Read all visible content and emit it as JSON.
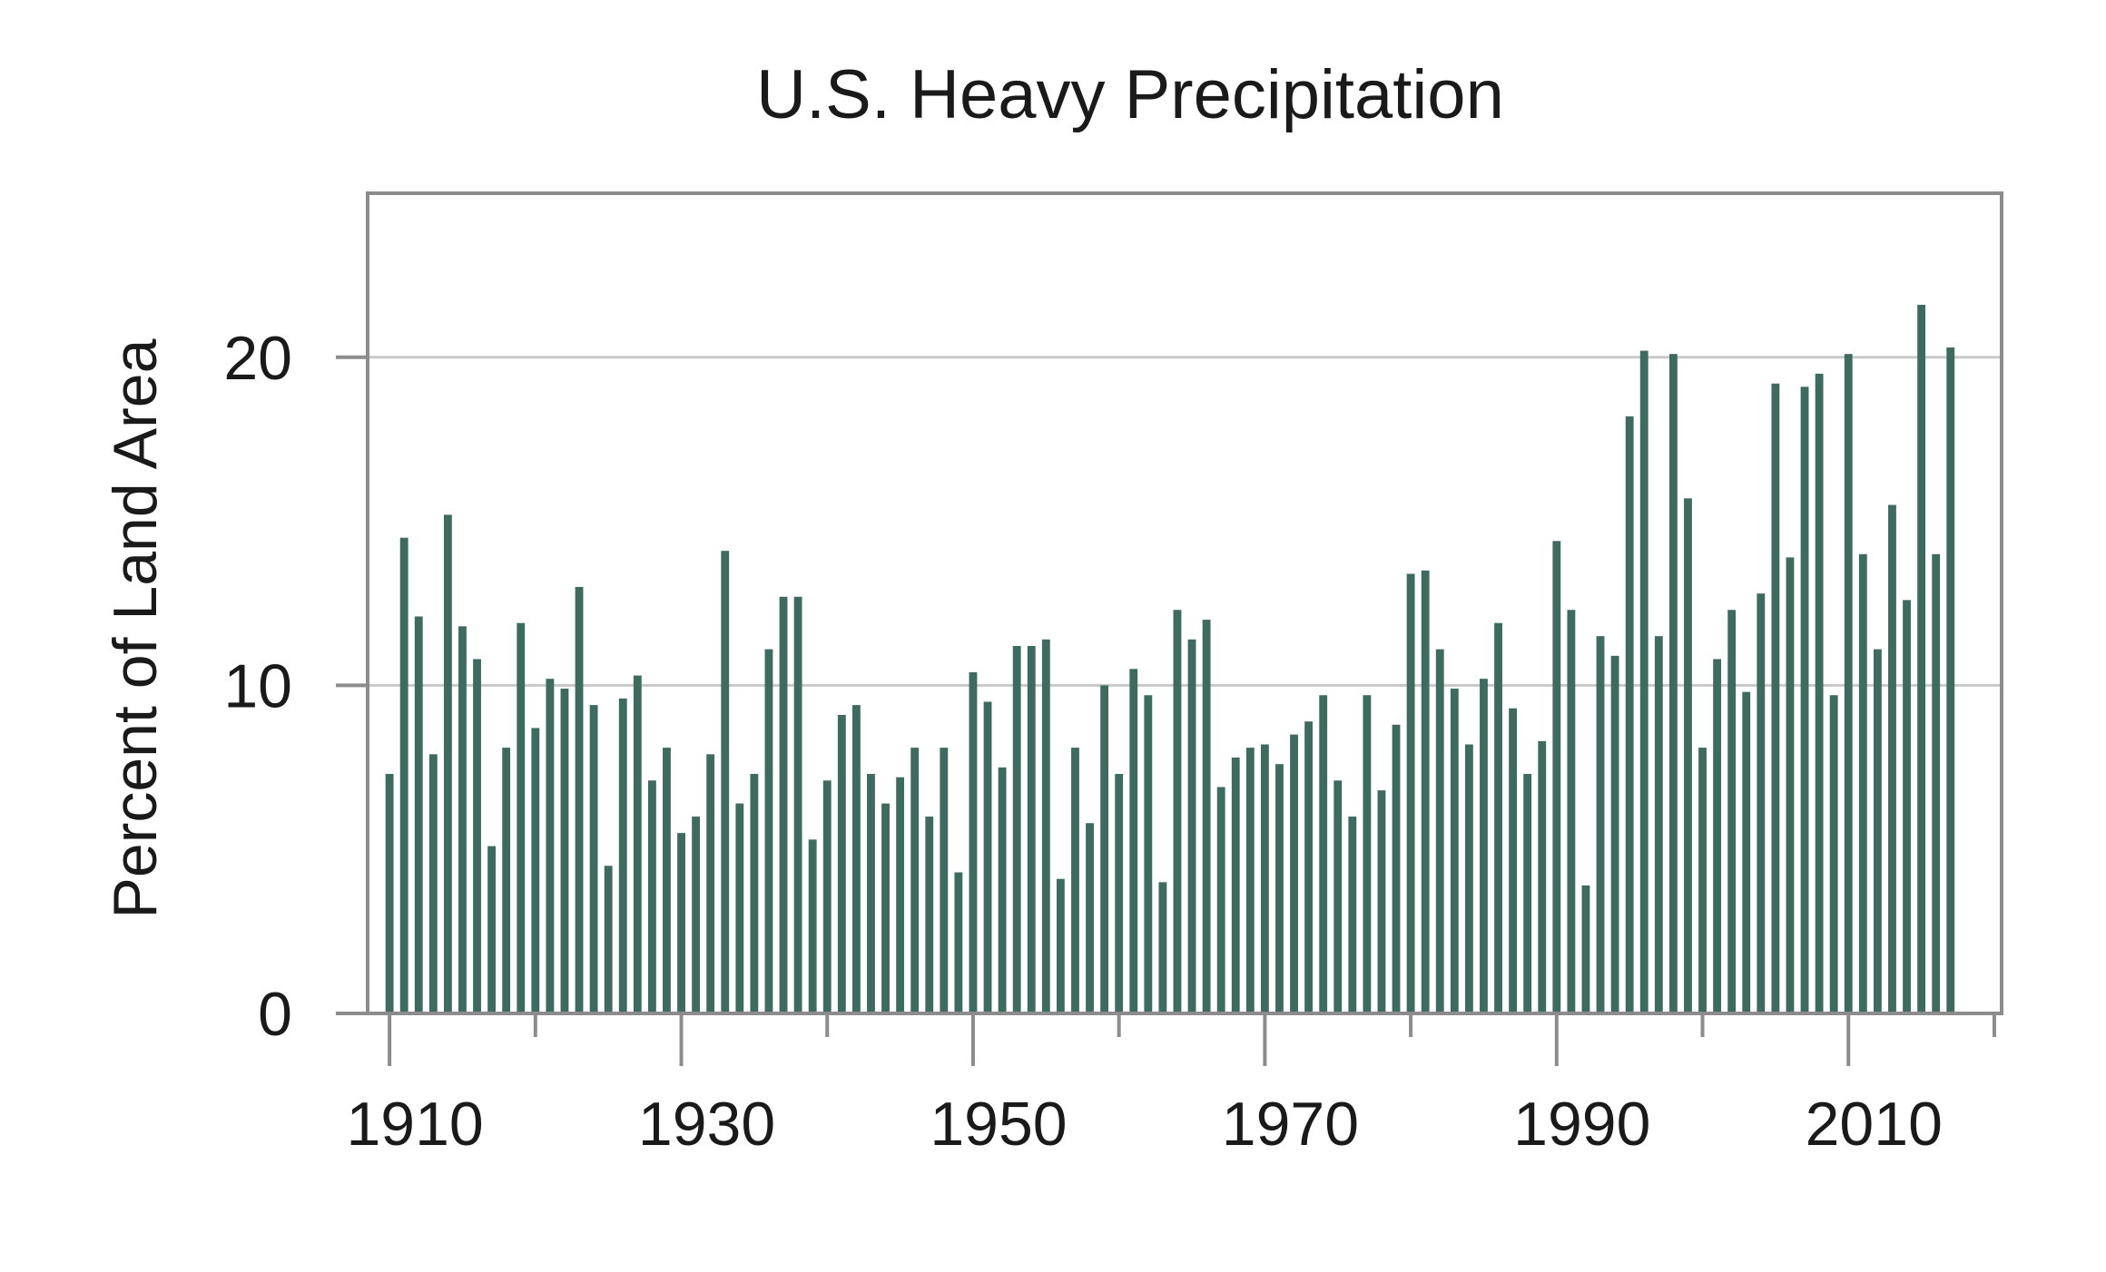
{
  "colors": {
    "bar": "#3e6b60",
    "axis": "#8c8c8c",
    "grid": "#c8c8c8",
    "frame": "#8c8c8c",
    "text": "#1a1a1a"
  },
  "chart_data": {
    "type": "bar",
    "title": "U.S. Heavy Precipitation",
    "xlabel": "",
    "ylabel": "Percent of Land Area",
    "xlim": [
      1908.5,
      2020.5
    ],
    "ylim": [
      0,
      25
    ],
    "grid": "horizontal",
    "legend": "none",
    "xticks_labeled": [
      "1910",
      "1930",
      "1950",
      "1970",
      "1990",
      "2010"
    ],
    "xticks_minor": [
      1920,
      1940,
      1960,
      1980,
      2000,
      2020
    ],
    "yticks": [
      "0",
      "10",
      "20"
    ],
    "x": [
      1910,
      1911,
      1912,
      1913,
      1914,
      1915,
      1916,
      1917,
      1918,
      1919,
      1920,
      1921,
      1922,
      1923,
      1924,
      1925,
      1926,
      1927,
      1928,
      1929,
      1930,
      1931,
      1932,
      1933,
      1934,
      1935,
      1936,
      1937,
      1938,
      1939,
      1940,
      1941,
      1942,
      1943,
      1944,
      1945,
      1946,
      1947,
      1948,
      1949,
      1950,
      1951,
      1952,
      1953,
      1954,
      1955,
      1956,
      1957,
      1958,
      1959,
      1960,
      1961,
      1962,
      1963,
      1964,
      1965,
      1966,
      1967,
      1968,
      1969,
      1970,
      1971,
      1972,
      1973,
      1974,
      1975,
      1976,
      1977,
      1978,
      1979,
      1980,
      1981,
      1982,
      1983,
      1984,
      1985,
      1986,
      1987,
      1988,
      1989,
      1990,
      1991,
      1992,
      1993,
      1994,
      1995,
      1996,
      1997,
      1998,
      1999,
      2000,
      2001,
      2002,
      2003,
      2004,
      2005,
      2006,
      2007,
      2008,
      2009,
      2010,
      2011,
      2012,
      2013,
      2014,
      2015,
      2016,
      2017
    ],
    "values": [
      7.3,
      14.5,
      12.1,
      7.9,
      15.2,
      11.8,
      10.8,
      5.1,
      8.1,
      11.9,
      8.7,
      10.2,
      9.9,
      13.0,
      9.4,
      4.5,
      9.6,
      10.3,
      7.1,
      8.1,
      5.5,
      6.0,
      7.9,
      14.1,
      6.4,
      7.3,
      11.1,
      12.7,
      12.7,
      5.3,
      7.1,
      9.1,
      9.4,
      7.3,
      6.4,
      7.2,
      8.1,
      6.0,
      8.1,
      4.3,
      10.4,
      9.5,
      7.5,
      11.2,
      11.2,
      11.4,
      4.1,
      8.1,
      5.8,
      10.0,
      7.3,
      10.5,
      9.7,
      4.0,
      12.3,
      11.4,
      12.0,
      6.9,
      7.8,
      8.1,
      8.2,
      7.6,
      8.5,
      8.9,
      9.7,
      7.1,
      6.0,
      9.7,
      6.8,
      8.8,
      13.4,
      13.5,
      11.1,
      9.9,
      8.2,
      10.2,
      11.9,
      9.3,
      7.3,
      8.3,
      14.4,
      12.3,
      3.9,
      11.5,
      10.9,
      18.2,
      20.2,
      11.5,
      20.1,
      15.7,
      8.1,
      10.8,
      12.3,
      9.8,
      12.8,
      19.2,
      13.9,
      19.1,
      19.5,
      9.7,
      20.1,
      14.0,
      11.1,
      15.5,
      12.6,
      21.6,
      14.0,
      20.3
    ]
  }
}
